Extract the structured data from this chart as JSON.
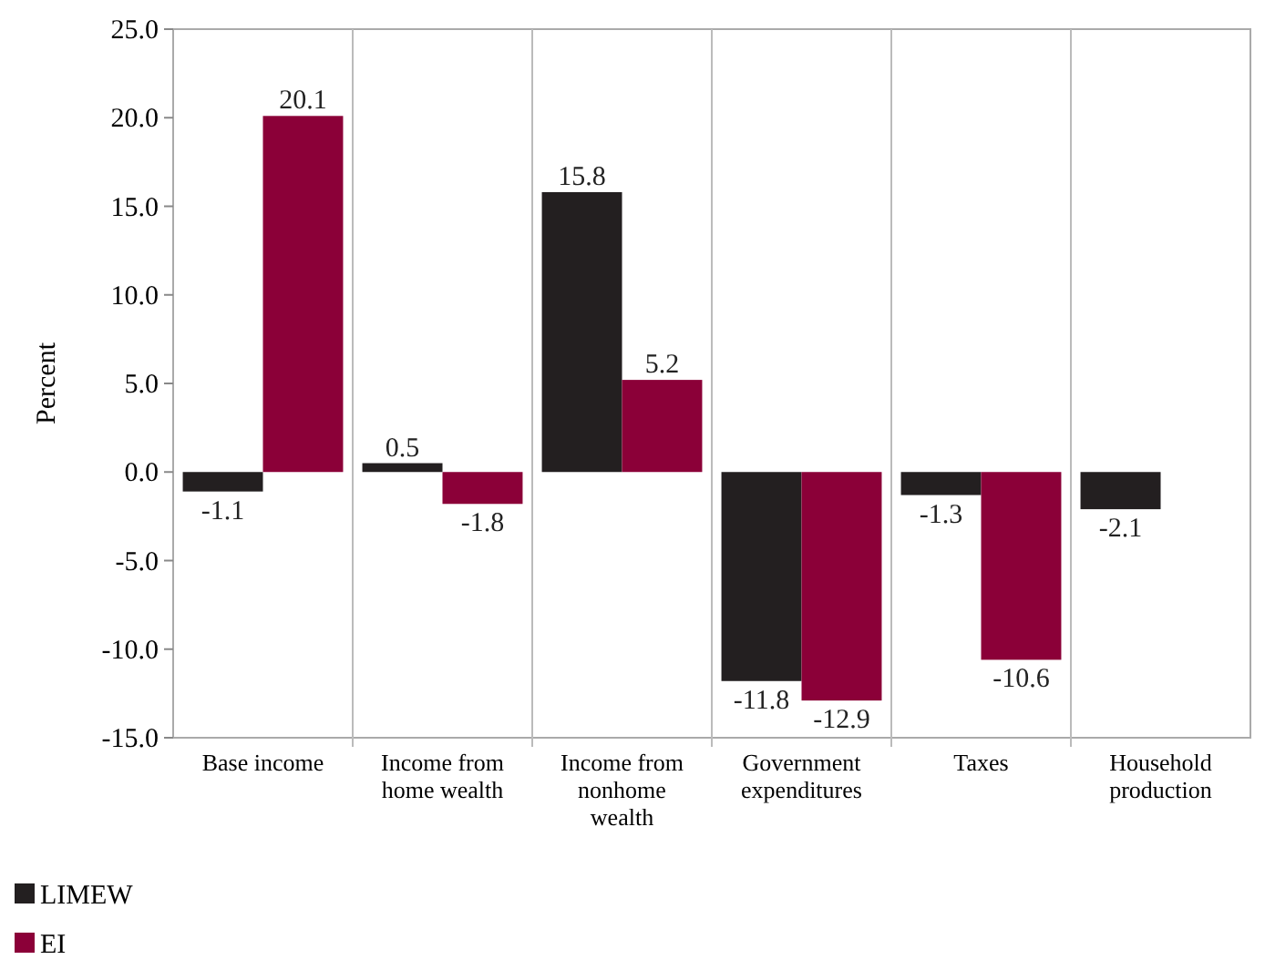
{
  "chart_data": {
    "type": "bar",
    "ylabel": "Percent",
    "categories": [
      "Base income",
      "Income from home wealth",
      "Income from nonhome wealth",
      "Government expenditures",
      "Taxes",
      "Household production"
    ],
    "series": [
      {
        "name": "LIMEW",
        "color": "#231f20",
        "values": [
          -1.1,
          0.5,
          15.8,
          -11.8,
          -1.3,
          -2.1
        ]
      },
      {
        "name": "EI",
        "color": "#8b0038",
        "values": [
          20.1,
          -1.8,
          5.2,
          -12.9,
          -10.6,
          null
        ]
      }
    ],
    "ylim": [
      -15,
      25
    ],
    "yticks": [
      {
        "value": -15,
        "label": "-15.0"
      },
      {
        "value": -10,
        "label": "-10.0"
      },
      {
        "value": -5,
        "label": "-5.0"
      },
      {
        "value": 0,
        "label": "0.0"
      },
      {
        "value": 5,
        "label": "5.0"
      },
      {
        "value": 10,
        "label": "10.0"
      },
      {
        "value": 15,
        "label": "15.0"
      },
      {
        "value": 20,
        "label": "20.0"
      },
      {
        "value": 25,
        "label": "25.0"
      }
    ],
    "grid": "x",
    "legend": "bottom left",
    "data_labels": true
  }
}
